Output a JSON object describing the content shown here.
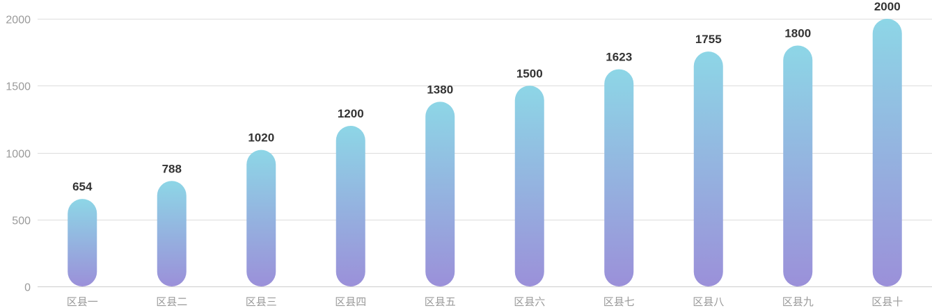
{
  "chart_data": {
    "type": "bar",
    "title": "",
    "xlabel": "",
    "ylabel": "",
    "categories": [
      "区县一",
      "区县二",
      "区县三",
      "区县四",
      "区县五",
      "区县六",
      "区县七",
      "区县八",
      "区县九",
      "区县十"
    ],
    "values": [
      654,
      788,
      1020,
      1200,
      1380,
      1500,
      1623,
      1755,
      1800,
      2000
    ],
    "ylim": [
      0,
      2000
    ],
    "yticks": [
      0,
      500,
      1000,
      1500,
      2000
    ],
    "grid": true,
    "legend": "none",
    "bar_style": "rounded capsule with vertical gradient",
    "colors": {
      "gradient_top": "#8dd6e6",
      "gradient_bottom": "#9b90d9"
    }
  }
}
